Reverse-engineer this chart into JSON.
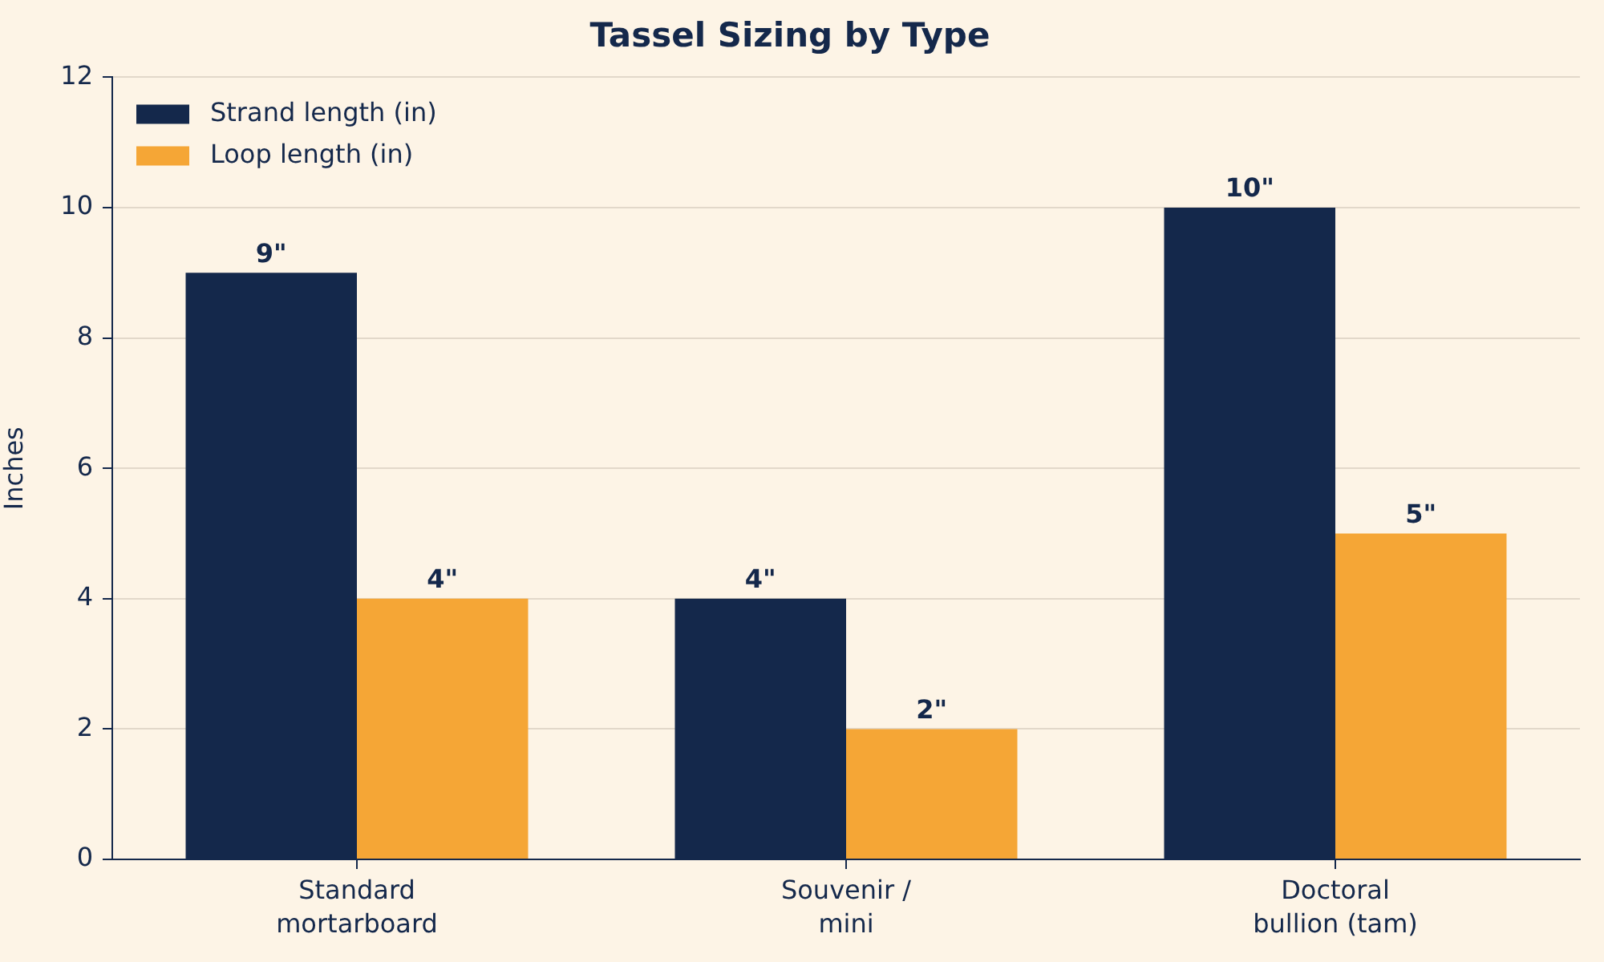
{
  "chart_data": {
    "type": "bar",
    "title": "Tassel Sizing by Type",
    "ylabel": "Inches",
    "categories": [
      "Standard\nmortarboard",
      "Souvenir /\nmini",
      "Doctoral\nbullion (tam)"
    ],
    "series": [
      {
        "name": "Strand length (in)",
        "color": "#14284b",
        "values": [
          9,
          4,
          10
        ],
        "value_labels": [
          "9\"",
          "4\"",
          "10\""
        ]
      },
      {
        "name": "Loop length (in)",
        "color": "#f5a636",
        "values": [
          4,
          2,
          5
        ],
        "value_labels": [
          "4\"",
          "2\"",
          "5\""
        ]
      }
    ],
    "ylim": [
      0,
      12
    ],
    "yticks": [
      0,
      2,
      4,
      6,
      8,
      10,
      12
    ],
    "grid": "y",
    "legend": "top left"
  }
}
